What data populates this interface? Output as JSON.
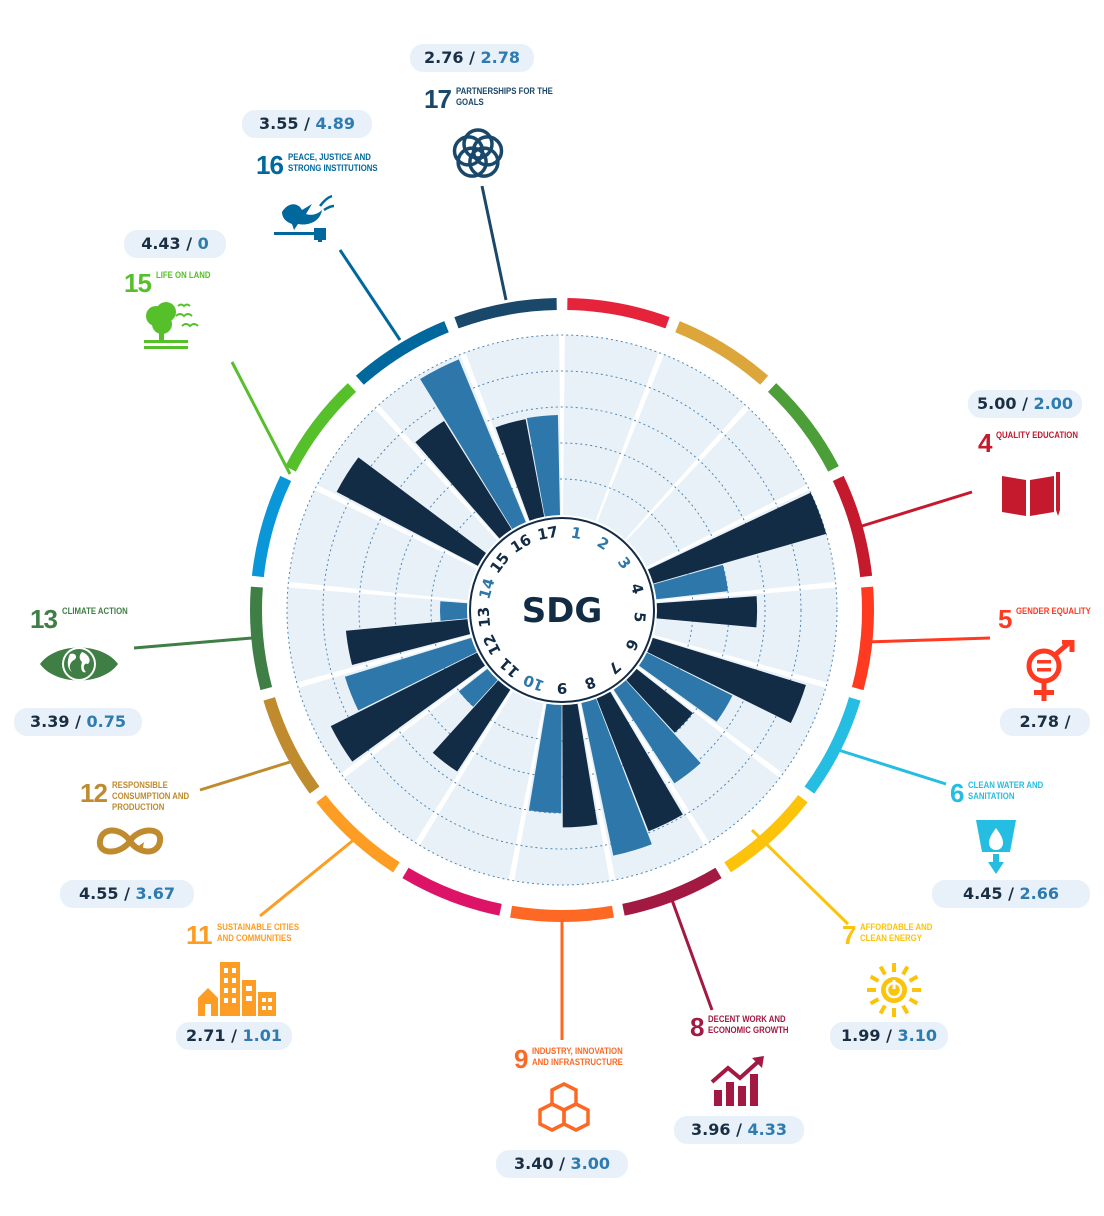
{
  "center_label": "SDG",
  "colors": {
    "dark_bar": "#132c45",
    "light_bar": "#2e77aa",
    "background_wedge": "#e9f1f8",
    "pill_bg": "#e8f1f9",
    "value_a": "#1a2f44",
    "value_b": "#2e7bb0"
  },
  "goals": [
    {
      "number": "1",
      "name": "",
      "color": "#e5243b",
      "icon": "",
      "value_a": "",
      "value_b": ""
    },
    {
      "number": "2",
      "name": "",
      "color": "#dda63a",
      "icon": "",
      "value_a": "",
      "value_b": ""
    },
    {
      "number": "3",
      "name": "",
      "color": "#4c9f38",
      "icon": "",
      "value_a": "",
      "value_b": ""
    },
    {
      "number": "4",
      "name": "QUALITY EDUCATION",
      "color": "#c5192d",
      "icon": "book-icon",
      "value_a": "5.00",
      "value_b": "2.00"
    },
    {
      "number": "5",
      "name": "GENDER EQUALITY",
      "color": "#ff3a21",
      "icon": "gender-equality-icon",
      "value_a": "2.78",
      "value_b": ""
    },
    {
      "number": "6",
      "name": "CLEAN WATER AND SANITATION",
      "color": "#26bde2",
      "icon": "water-drop-icon",
      "value_a": "4.45",
      "value_b": "2.66"
    },
    {
      "number": "7",
      "name": "AFFORDABLE AND CLEAN ENERGY",
      "color": "#fcc30b",
      "icon": "sun-power-icon",
      "value_a": "1.99",
      "value_b": "3.10"
    },
    {
      "number": "8",
      "name": "DECENT WORK AND ECONOMIC GROWTH",
      "color": "#a21942",
      "icon": "growth-chart-icon",
      "value_a": "3.96",
      "value_b": "4.33"
    },
    {
      "number": "9",
      "name": "INDUSTRY, INNOVATION AND INFRASTRUCTURE",
      "color": "#fd6925",
      "icon": "cubes-icon",
      "value_a": "3.40",
      "value_b": "3.00"
    },
    {
      "number": "10",
      "name": "",
      "color": "#dd1367",
      "icon": "",
      "value_a": "",
      "value_b": ""
    },
    {
      "number": "11",
      "name": "SUSTAINABLE CITIES AND COMMUNITIES",
      "color": "#fd9d24",
      "icon": "city-buildings-icon",
      "value_a": "2.71",
      "value_b": "1.01"
    },
    {
      "number": "12",
      "name": "RESPONSIBLE CONSUMPTION AND PRODUCTION",
      "color": "#bf8b2e",
      "icon": "infinity-loop-icon",
      "value_a": "4.55",
      "value_b": "3.67"
    },
    {
      "number": "13",
      "name": "CLIMATE ACTION",
      "color": "#3f7e44",
      "icon": "earth-eye-icon",
      "value_a": "3.39",
      "value_b": "0.75"
    },
    {
      "number": "14",
      "name": "",
      "color": "#0a97d9",
      "icon": "",
      "value_a": "",
      "value_b": ""
    },
    {
      "number": "15",
      "name": "LIFE ON LAND",
      "color": "#56c02b",
      "icon": "tree-icon",
      "value_a": "4.43",
      "value_b": "0"
    },
    {
      "number": "16",
      "name": "PEACE, JUSTICE AND STRONG INSTITUTIONS",
      "color": "#00689d",
      "icon": "dove-gavel-icon",
      "value_a": "3.55",
      "value_b": "4.89"
    },
    {
      "number": "17",
      "name": "PARTNERSHIPS FOR THE GOALS",
      "color": "#19486a",
      "icon": "partnership-rings-icon",
      "value_a": "2.76",
      "value_b": "2.78"
    }
  ],
  "chart_data": {
    "type": "bar",
    "subtype": "radial",
    "title": "",
    "categories": [
      "1",
      "2",
      "3",
      "4",
      "5",
      "6",
      "7",
      "8",
      "9",
      "10",
      "11",
      "12",
      "13",
      "14",
      "15",
      "16",
      "17"
    ],
    "series": [
      {
        "values": [
          null,
          null,
          null,
          5.0,
          2.78,
          4.45,
          1.99,
          3.96,
          3.4,
          null,
          2.71,
          4.55,
          3.39,
          null,
          4.43,
          3.55,
          2.76
        ]
      },
      {
        "values": [
          null,
          null,
          null,
          2.0,
          null,
          2.66,
          3.1,
          4.33,
          3.0,
          null,
          1.01,
          3.67,
          0.75,
          null,
          0,
          4.89,
          2.78
        ]
      }
    ],
    "ylim": [
      0,
      5
    ],
    "grid": true,
    "highlighted_categories": [
      "1",
      "2",
      "3",
      "4",
      "5",
      "6",
      "7",
      "8",
      "9",
      "10",
      "11",
      "12",
      "13",
      "14",
      "15",
      "16",
      "17"
    ]
  }
}
